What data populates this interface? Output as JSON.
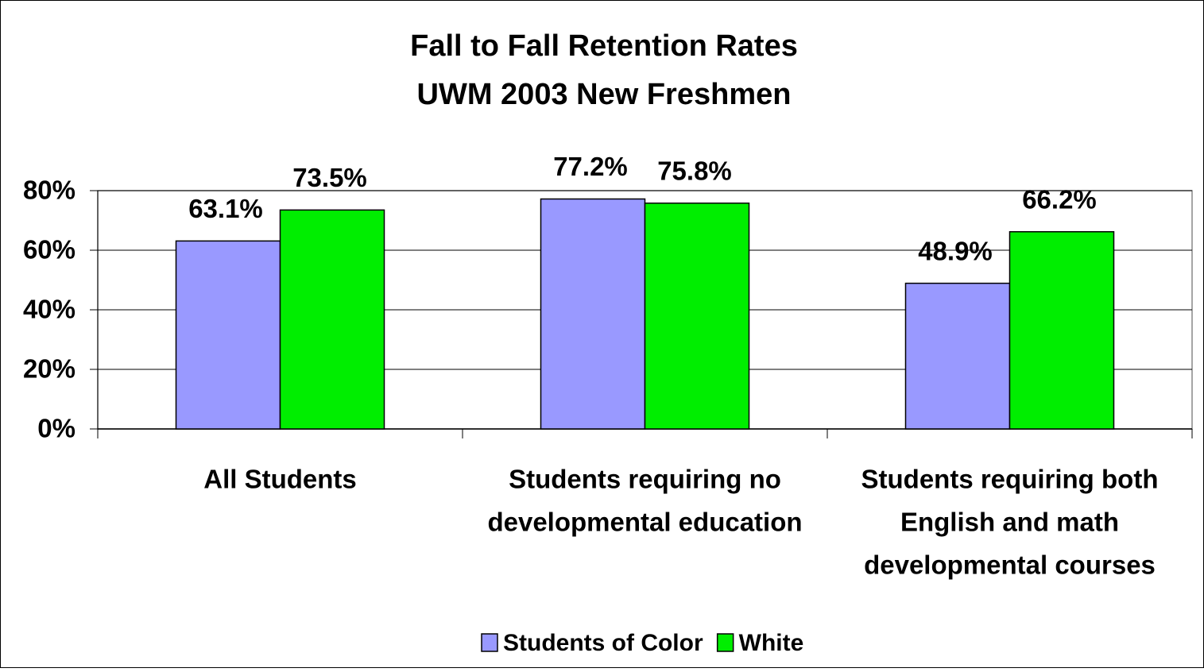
{
  "chart_data": {
    "type": "bar",
    "title": "Fall to Fall Retention Rates",
    "subtitle": "UWM 2003 New Freshmen",
    "categories": [
      [
        "All Students"
      ],
      [
        "Students requiring no",
        "developmental education"
      ],
      [
        "Students requiring both",
        "English and math",
        "developmental courses"
      ]
    ],
    "series": [
      {
        "name": "Students of Color",
        "color": "#9999ff",
        "values": [
          63.1,
          77.2,
          48.9
        ],
        "value_labels": [
          "63.1%",
          "77.2%",
          "48.9%"
        ]
      },
      {
        "name": "White",
        "color": "#00ee00",
        "values": [
          73.5,
          75.8,
          66.2
        ],
        "value_labels": [
          "73.5%",
          "75.8%",
          "66.2%"
        ]
      }
    ],
    "ylim": [
      0,
      80
    ],
    "yticks": [
      {
        "value": 0,
        "label": "0%"
      },
      {
        "value": 20,
        "label": "20%"
      },
      {
        "value": 40,
        "label": "40%"
      },
      {
        "value": 60,
        "label": "60%"
      },
      {
        "value": 80,
        "label": "80%"
      }
    ],
    "grid": true,
    "legend": "bottom"
  }
}
